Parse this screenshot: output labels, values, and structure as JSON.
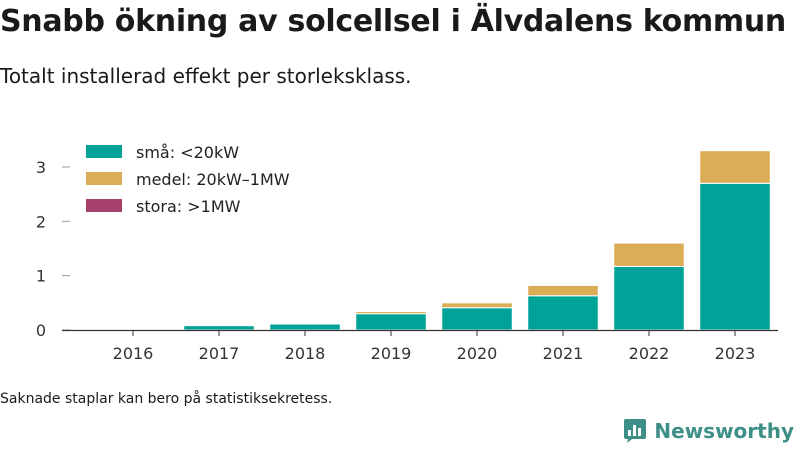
{
  "title": "Snabb ökning av solcellsel i Älvdalens kommun",
  "subtitle": "Totalt installerad effekt per storleksklass.",
  "footnote": "Saknade staplar kan bero på statistiksekretess.",
  "brand": {
    "name": "Newsworthy",
    "icon": "bar-chart-logo-icon"
  },
  "colors": {
    "small": "#00a398",
    "medium": "#dbad57",
    "large": "#a6416b",
    "axis": "#333333",
    "grid": "#e6e6e6"
  },
  "chart_data": {
    "type": "bar",
    "stacked": true,
    "title": "Snabb ökning av solcellsel i Älvdalens kommun",
    "subtitle": "Totalt installerad effekt per storleksklass.",
    "xlabel": "",
    "ylabel": "",
    "categories": [
      "2016",
      "2017",
      "2018",
      "2019",
      "2020",
      "2021",
      "2022",
      "2023"
    ],
    "series": [
      {
        "name": "små: <20kW",
        "color": "#00a398",
        "values": [
          0,
          0.08,
          0.11,
          0.3,
          0.41,
          0.63,
          1.17,
          2.7
        ]
      },
      {
        "name": "medel: 20kW–1MW",
        "color": "#dbad57",
        "values": [
          0,
          0,
          0,
          0.04,
          0.09,
          0.19,
          0.43,
          0.6
        ]
      },
      {
        "name": "stora: >1MW",
        "color": "#a6416b",
        "values": [
          0,
          0,
          0,
          0,
          0,
          0,
          0,
          0
        ]
      }
    ],
    "ylim": [
      0,
      3.5
    ],
    "yticks": [
      0,
      1,
      2,
      3
    ],
    "grid": false,
    "legend": "top-left"
  }
}
